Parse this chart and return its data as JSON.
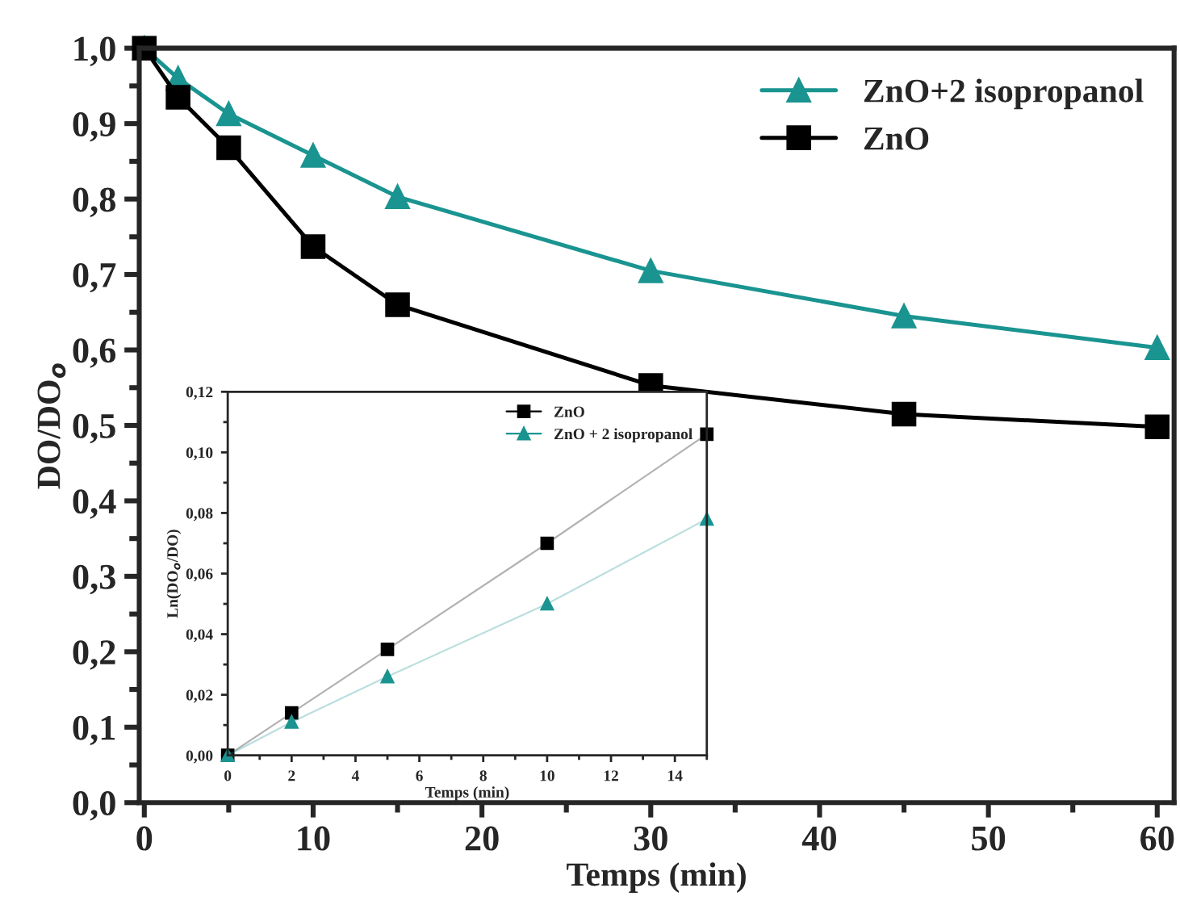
{
  "chart_data": [
    {
      "type": "line",
      "xlabel": "Temps (min)",
      "ylabel": "DO/DO$_{o}$",
      "x": [
        0,
        2,
        5,
        10,
        15,
        30,
        45,
        60
      ],
      "series": [
        {
          "name": "ZnO+2 isopropanol",
          "color": "#1a9490",
          "marker": "triangle",
          "values": [
            1.0,
            0.96,
            0.913,
            0.858,
            0.803,
            0.705,
            0.645,
            0.603
          ]
        },
        {
          "name": "ZnO",
          "color": "#000000",
          "marker": "square",
          "values": [
            1.0,
            0.935,
            0.868,
            0.737,
            0.66,
            0.553,
            0.515,
            0.498
          ]
        }
      ],
      "xlim": [
        -0.3,
        61
      ],
      "ylim": [
        0,
        1
      ],
      "xticks": [
        0,
        10,
        20,
        30,
        40,
        50,
        60
      ],
      "yticks": [
        {
          "value": 0,
          "label": "0,0"
        },
        {
          "value": 0.1,
          "label": "0,1"
        },
        {
          "value": 0.2,
          "label": "0,2"
        },
        {
          "value": 0.3,
          "label": "0,3"
        },
        {
          "value": 0.4,
          "label": "0,4"
        },
        {
          "value": 0.5,
          "label": "0,5"
        },
        {
          "value": 0.6,
          "label": "0,6"
        },
        {
          "value": 0.7,
          "label": "0,7"
        },
        {
          "value": 0.8,
          "label": "0,8"
        },
        {
          "value": 0.9,
          "label": "0,9"
        },
        {
          "value": 1.0,
          "label": "1,0"
        }
      ],
      "legend": "top right",
      "grid": false
    },
    {
      "type": "line",
      "xlabel": "Temps (min)",
      "ylabel": "Ln(DO$_{o}$/DO)",
      "x": [
        0,
        2,
        5,
        10,
        15
      ],
      "series": [
        {
          "name": "ZnO",
          "color": "#000000",
          "marker": "square",
          "values": [
            0,
            0.014,
            0.035,
            0.07,
            0.106
          ]
        },
        {
          "name": "ZnO + 2 isopropanol",
          "color": "#1a9490",
          "marker": "triangle",
          "values": [
            0,
            0.011,
            0.026,
            0.05,
            0.078
          ]
        }
      ],
      "xlim": [
        0,
        15
      ],
      "ylim": [
        0,
        0.12
      ],
      "xticks": [
        0,
        2,
        4,
        6,
        8,
        10,
        12,
        14
      ],
      "yticks": [
        {
          "value": 0,
          "label": "0,00"
        },
        {
          "value": 0.02,
          "label": "0,02"
        },
        {
          "value": 0.04,
          "label": "0,04"
        },
        {
          "value": 0.06,
          "label": "0,06"
        },
        {
          "value": 0.08,
          "label": "0,08"
        },
        {
          "value": 0.1,
          "label": "0,10"
        },
        {
          "value": 0.12,
          "label": "0,12"
        }
      ],
      "legend": "top right",
      "grid": false
    }
  ]
}
